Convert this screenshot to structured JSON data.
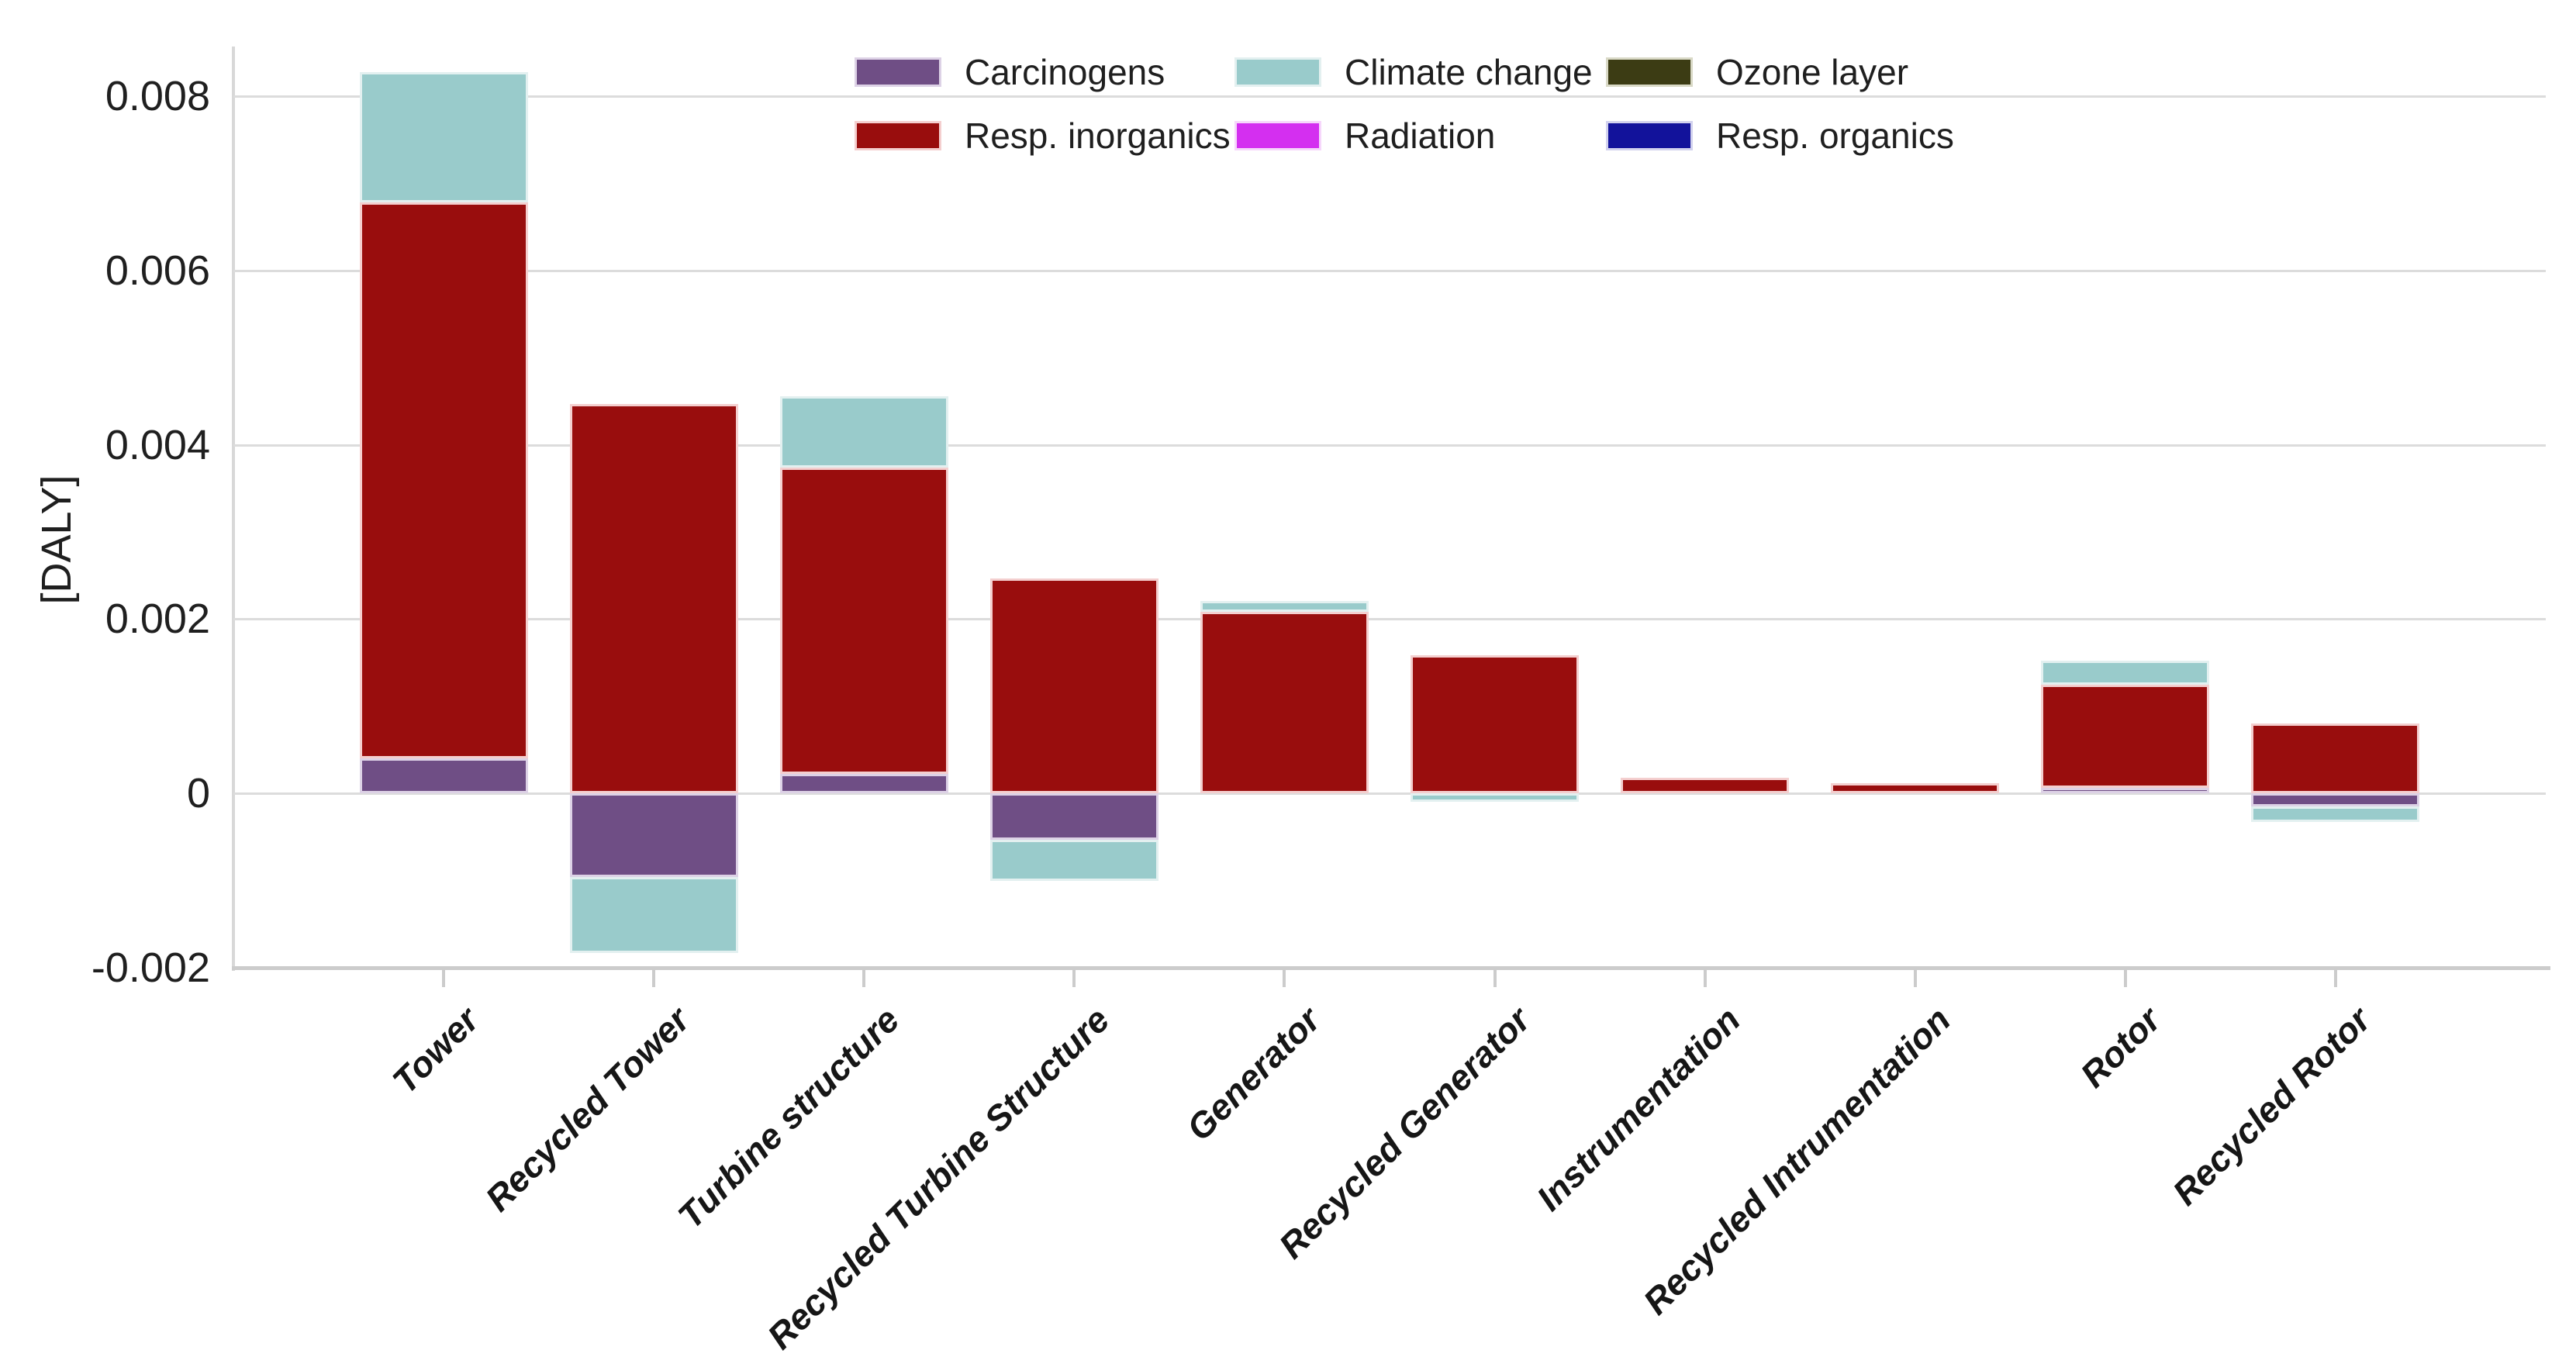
{
  "chart_data": {
    "type": "bar",
    "stacked": true,
    "title": "",
    "xlabel": "",
    "ylabel": "[DALY]",
    "ylim": [
      -0.002,
      0.00857
    ],
    "grid": true,
    "legend_position": "top-center",
    "y_ticks": [
      {
        "value": 0.008,
        "label": "0.008"
      },
      {
        "value": 0.006,
        "label": "0.006"
      },
      {
        "value": 0.004,
        "label": "0.004"
      },
      {
        "value": 0.002,
        "label": "0.002"
      },
      {
        "value": 0,
        "label": "0"
      },
      {
        "value": -0.002,
        "label": "-0.002"
      }
    ],
    "categories": [
      "Tower",
      "Recycled Tower",
      "Turbine structure",
      "Recycled Turbine Structure",
      "Generator",
      "Recycled Generator",
      "Instrumentation",
      "Recycled Intrumentation",
      "Rotor",
      "Recycled Rotor"
    ],
    "series": [
      {
        "key": "carcinogens",
        "name": "Carcinogens",
        "color": "#6F4E85",
        "border_color": "#DDD2E6",
        "values": [
          0.0004,
          -0.00096,
          0.00022,
          -0.00053,
          0,
          0,
          0,
          0,
          6e-05,
          -0.00015
        ]
      },
      {
        "key": "climate_change",
        "name": "Climate change",
        "color": "#99CBCB",
        "border_color": "#E3F0F0",
        "values": [
          0.0015,
          -0.00087,
          0.00082,
          -0.00047,
          0.00013,
          -0.0001,
          0,
          0,
          0.00027,
          -0.00018
        ]
      },
      {
        "key": "ozone_layer",
        "name": "Ozone layer",
        "color": "#3C3C14",
        "border_color": "#D9D9C6",
        "values": [
          0,
          0,
          0,
          0,
          0,
          0,
          0,
          0,
          0,
          0
        ]
      },
      {
        "key": "resp_inorganics",
        "name": "Resp. inorganics",
        "color": "#990D0D",
        "border_color": "#F4CFCF",
        "values": [
          0.00638,
          0.00447,
          0.00352,
          0.00247,
          0.00208,
          0.00159,
          0.00018,
          0.00012,
          0.00119,
          0.0008
        ]
      },
      {
        "key": "radiation",
        "name": "Radiation",
        "color": "#D42FF0",
        "border_color": "#F6D7FB",
        "values": [
          0,
          0,
          0,
          0,
          0,
          0,
          0,
          0,
          0,
          0
        ]
      },
      {
        "key": "resp_organics",
        "name": "Resp. organics",
        "color": "#12129B",
        "border_color": "#D2D2EE",
        "values": [
          0,
          0,
          0,
          0,
          0,
          0,
          0,
          0,
          0,
          0
        ]
      }
    ],
    "stack_order": [
      "carcinogens",
      "resp_inorganics",
      "climate_change",
      "ozone_layer",
      "radiation",
      "resp_organics"
    ],
    "axis_colors": {
      "gridline": "#DCDCDC",
      "axis": "#CCCCCC",
      "text": "#1F1F1F"
    }
  }
}
